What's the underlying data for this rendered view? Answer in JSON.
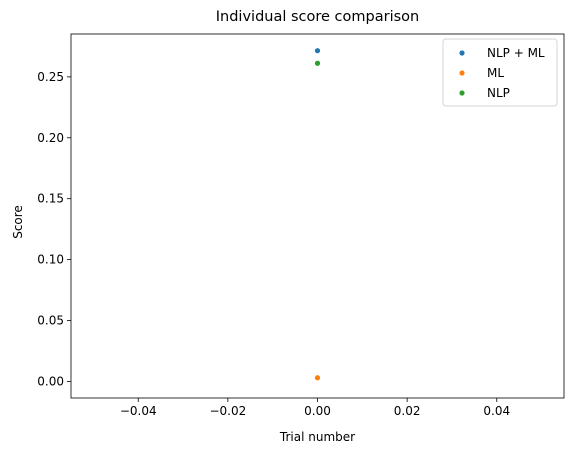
{
  "chart_data": {
    "type": "scatter",
    "title": "Individual score comparison",
    "xlabel": "Trial number",
    "ylabel": "Score",
    "xlim": [
      -0.055,
      0.055
    ],
    "ylim": [
      -0.0136,
      0.2852
    ],
    "x_ticks": [
      -0.04,
      -0.02,
      0.0,
      0.02,
      0.04
    ],
    "x_tick_labels": [
      "−0.04",
      "−0.02",
      "0.00",
      "0.02",
      "0.04"
    ],
    "y_ticks": [
      0.0,
      0.05,
      0.1,
      0.15,
      0.2,
      0.25
    ],
    "y_tick_labels": [
      "0.00",
      "0.05",
      "0.10",
      "0.15",
      "0.20",
      "0.25"
    ],
    "grid": false,
    "legend_position": "top-right",
    "series": [
      {
        "name": "NLP + ML",
        "color": "#1f77b4",
        "x": [
          0
        ],
        "y": [
          0.2715
        ]
      },
      {
        "name": "ML",
        "color": "#ff7f0e",
        "x": [
          0
        ],
        "y": [
          0.003
        ]
      },
      {
        "name": "NLP",
        "color": "#2ca02c",
        "x": [
          0
        ],
        "y": [
          0.2612
        ]
      }
    ]
  }
}
